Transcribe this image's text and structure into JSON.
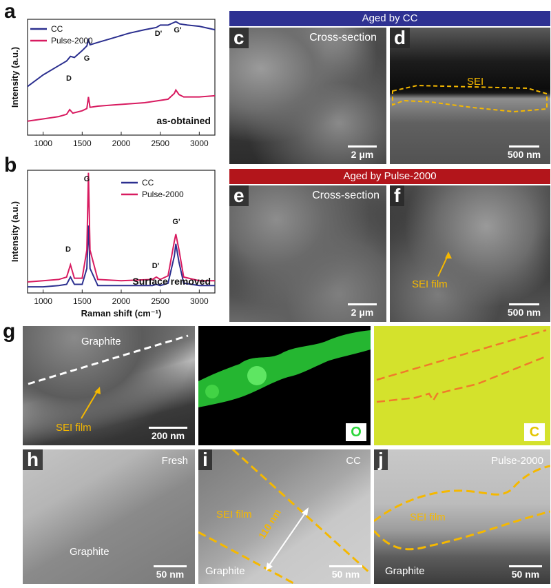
{
  "labels": {
    "a": "a",
    "b": "b",
    "c": "c",
    "d": "d",
    "e": "e",
    "f": "f",
    "g": "g",
    "h": "h",
    "i": "i",
    "j": "j"
  },
  "banners": {
    "cc": "Aged by CC",
    "pulse": "Aged by Pulse-2000"
  },
  "panel_text": {
    "c_title": "Cross-section",
    "c_scale": "2 μm",
    "d_sei": "SEI",
    "d_scale": "500 nm",
    "e_title": "Cross-section",
    "e_scale": "2 μm",
    "f_sei": "SEI film",
    "f_scale": "500 nm",
    "g_graphite": "Graphite",
    "g_sei": "SEI film",
    "g_scale": "200 nm",
    "g_o": "O",
    "g_c": "C",
    "h_title": "Fresh",
    "h_graphite": "Graphite",
    "h_scale": "50 nm",
    "i_title": "CC",
    "i_sei": "SEI film",
    "i_thick": "110 nm",
    "i_graphite": "Graphite",
    "i_scale": "50 nm",
    "j_title": "Pulse-2000",
    "j_sei": "SEI film",
    "j_graphite": "Graphite",
    "j_scale": "50 nm"
  },
  "colors": {
    "cc": "#2b2f8f",
    "pulse": "#d81b60",
    "banner_cc": "#2e3192",
    "banner_pulse": "#b3151b",
    "sei": "#f5b800",
    "emap_o": "#2bd63a",
    "emap_c": "#d4e22c"
  },
  "chart_data": [
    {
      "type": "line",
      "panel": "a",
      "xlabel": "Raman shift (cm⁻¹)",
      "ylabel": "Intensity (a.u.)",
      "xlim": [
        800,
        3200
      ],
      "xticks": [
        1000,
        1500,
        2000,
        2500,
        3000
      ],
      "annotation": "as-obtained",
      "legend": [
        "CC",
        "Pulse-2000"
      ],
      "peaks": [
        "D",
        "G",
        "D'",
        "G'"
      ],
      "series": [
        {
          "name": "CC",
          "x": [
            800,
            1000,
            1200,
            1300,
            1350,
            1400,
            1500,
            1560,
            1580,
            1600,
            1700,
            1900,
            2100,
            2300,
            2450,
            2500,
            2600,
            2700,
            2750,
            2850,
            3000,
            3200
          ],
          "y": [
            0.42,
            0.52,
            0.6,
            0.64,
            0.68,
            0.67,
            0.73,
            0.77,
            0.82,
            0.78,
            0.8,
            0.84,
            0.88,
            0.91,
            0.93,
            0.95,
            0.95,
            0.98,
            0.96,
            0.95,
            0.94,
            0.91
          ]
        },
        {
          "name": "Pulse-2000",
          "x": [
            800,
            1000,
            1200,
            1300,
            1340,
            1380,
            1500,
            1560,
            1580,
            1600,
            1700,
            1900,
            2100,
            2300,
            2500,
            2600,
            2680,
            2700,
            2740,
            2800,
            3000,
            3200
          ],
          "y": [
            0.12,
            0.14,
            0.16,
            0.18,
            0.22,
            0.19,
            0.21,
            0.23,
            0.33,
            0.24,
            0.25,
            0.26,
            0.27,
            0.28,
            0.3,
            0.31,
            0.36,
            0.39,
            0.35,
            0.33,
            0.33,
            0.34
          ]
        }
      ]
    },
    {
      "type": "line",
      "panel": "b",
      "xlabel": "Raman shift (cm⁻¹)",
      "ylabel": "Intensity (a.u.)",
      "xlim": [
        800,
        3200
      ],
      "xticks": [
        1000,
        1500,
        2000,
        2500,
        3000
      ],
      "annotation": "Surface removed",
      "legend": [
        "CC",
        "Pulse-2000"
      ],
      "peaks": [
        "D",
        "G",
        "D'",
        "G'"
      ],
      "series": [
        {
          "name": "CC",
          "x": [
            800,
            1000,
            1200,
            1300,
            1350,
            1400,
            1500,
            1560,
            1580,
            1600,
            1700,
            2000,
            2400,
            2450,
            2500,
            2600,
            2680,
            2700,
            2740,
            2800,
            3000,
            3200
          ],
          "y": [
            0.05,
            0.05,
            0.06,
            0.07,
            0.13,
            0.07,
            0.07,
            0.2,
            0.55,
            0.2,
            0.06,
            0.06,
            0.06,
            0.07,
            0.06,
            0.08,
            0.3,
            0.4,
            0.25,
            0.08,
            0.06,
            0.06
          ]
        },
        {
          "name": "Pulse-2000",
          "x": [
            800,
            1000,
            1200,
            1300,
            1350,
            1400,
            1500,
            1560,
            1580,
            1600,
            1700,
            2000,
            2400,
            2450,
            2500,
            2600,
            2680,
            2700,
            2740,
            2800,
            3000,
            3200
          ],
          "y": [
            0.09,
            0.1,
            0.11,
            0.13,
            0.23,
            0.12,
            0.12,
            0.35,
            0.98,
            0.35,
            0.11,
            0.1,
            0.11,
            0.13,
            0.11,
            0.14,
            0.42,
            0.48,
            0.35,
            0.13,
            0.1,
            0.1
          ]
        }
      ]
    }
  ]
}
